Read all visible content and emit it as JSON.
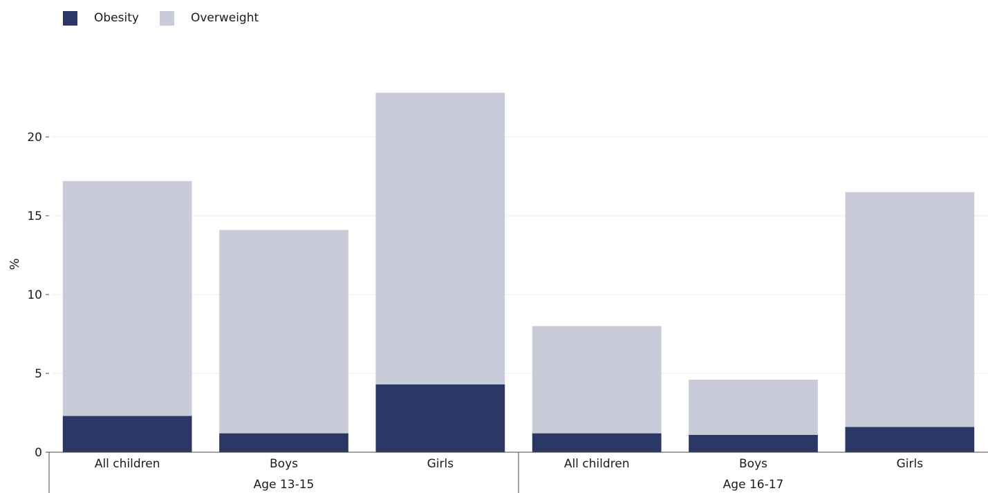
{
  "chart_data": {
    "type": "bar",
    "stacked": true,
    "ylabel": "%",
    "ylim": [
      0,
      23
    ],
    "yticks": [
      0,
      5,
      10,
      15,
      20
    ],
    "grid": true,
    "legend_position": "top-left",
    "categories": [
      "All children",
      "Boys",
      "Girls",
      "All children",
      "Boys",
      "Girls"
    ],
    "groups": [
      {
        "label": "Age 13-15",
        "size": 3
      },
      {
        "label": "Age 16-17",
        "size": 3
      }
    ],
    "series": [
      {
        "name": "Obesity",
        "color": "#2b3764",
        "values": [
          2.3,
          1.2,
          4.3,
          1.2,
          1.1,
          1.6
        ]
      },
      {
        "name": "Overweight",
        "color": "#c9ccd8",
        "values": [
          14.9,
          12.9,
          18.5,
          6.8,
          3.5,
          14.9
        ]
      }
    ]
  }
}
